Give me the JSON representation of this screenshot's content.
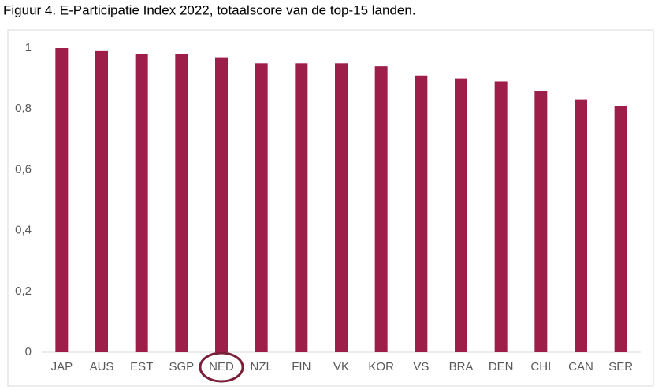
{
  "chart_data": {
    "type": "bar",
    "title": "Figuur 4. E-Participatie Index 2022, totaalscore van de top-15 landen.",
    "categories": [
      "JAP",
      "AUS",
      "EST",
      "SGP",
      "NED",
      "NZL",
      "FIN",
      "VK",
      "KOR",
      "VS",
      "BRA",
      "DEN",
      "CHI",
      "CAN",
      "SER"
    ],
    "values": [
      1.0,
      0.99,
      0.98,
      0.98,
      0.97,
      0.95,
      0.95,
      0.95,
      0.94,
      0.91,
      0.9,
      0.89,
      0.86,
      0.83,
      0.81
    ],
    "color": "#9e1e4a",
    "ylim": [
      0,
      1
    ],
    "yticks": [
      0,
      {
        "value": 0.2,
        "label": "0,2"
      },
      {
        "value": 0.4,
        "label": "0,4"
      },
      {
        "value": 0.6,
        "label": "0,6"
      },
      {
        "value": 0.8,
        "label": "0,8"
      },
      1
    ],
    "grid": false
  }
}
